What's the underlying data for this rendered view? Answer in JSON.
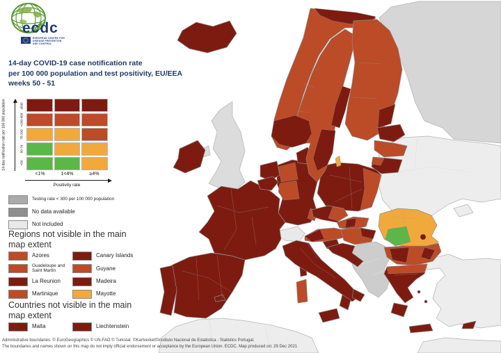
{
  "logo": {
    "wordmark": "ecdc",
    "subtitle_lines": [
      "EUROPEAN CENTRE FOR",
      "DISEASE PREVENTION",
      "AND CONTROL"
    ]
  },
  "title_lines": [
    "14-day COVID-19 case notification rate",
    "per 100 000 population and test positivity, EU/EEA",
    "weeks 50 - 51"
  ],
  "matrix": {
    "y_axis_label": "14-day notification rate per 100 000 population",
    "x_axis_label": "Positivity rate",
    "row_labels": [
      "≥500",
      ">200-499",
      "75-200",
      "50-74",
      "<50"
    ],
    "col_labels": [
      "<1%",
      "1<4%",
      "≥4%"
    ],
    "cells": [
      [
        "dark_red",
        "dark_red",
        "dark_red"
      ],
      [
        "red",
        "red",
        "red"
      ],
      [
        "orange",
        "orange",
        "red"
      ],
      [
        "green",
        "orange",
        "orange"
      ],
      [
        "green",
        "green",
        "orange"
      ]
    ]
  },
  "status_legend": {
    "items": [
      {
        "label": "Testing rate < 300 per 100 000 population",
        "color_key": "gray_testing"
      },
      {
        "label": "No data available",
        "color_key": "gray_nodata"
      },
      {
        "label": "Not included",
        "color_key": "gray_notincluded"
      }
    ]
  },
  "regions_section": {
    "heading": "Regions not visible in the main map extent",
    "items": [
      {
        "label": "Azores",
        "color_key": "red"
      },
      {
        "label": "Canary Islands",
        "color_key": "dark_red"
      },
      {
        "label": "Guadeloupe and Saint Martin",
        "color_key": "red"
      },
      {
        "label": "Guyane",
        "color_key": "red"
      },
      {
        "label": "La Reunion",
        "color_key": "dark_red"
      },
      {
        "label": "Madeira",
        "color_key": "dark_red"
      },
      {
        "label": "Martinique",
        "color_key": "red"
      },
      {
        "label": "Mayotte",
        "color_key": "orange"
      }
    ]
  },
  "countries_section": {
    "heading": "Countries not visible in the main map extent",
    "items": [
      {
        "label": "Malta",
        "color_key": "dark_red"
      },
      {
        "label": "Liechtenstein",
        "color_key": "dark_red"
      }
    ]
  },
  "footer": {
    "line1": "Administrative boundaries: © EuroGeographics © UN-FAO © Turkstat. ©Kartverket©Instituto Nacional de Estatistica - Statistics Portugal.",
    "line2": "The boundaries and names shown on this map do not imply official endorsement or acceptance by the European Union. ECDC. Map produced on: 29 Dec 2021"
  },
  "palette": {
    "dark_red": "#7E1B10",
    "red": "#BC4B28",
    "orange": "#F2A93B",
    "green": "#5BB747",
    "gray_testing": "#ABABAB",
    "gray_nodata": "#8F8F8F",
    "gray_notincluded": "#E9E9E9",
    "noneu_dark": "#CDCDCD",
    "noneu_mid": "#D6D6D6",
    "noneu_light": "#EDEDED",
    "uk_gray": "#DCDCDC",
    "logo_green": "#5B9B37",
    "navy": "#1F3864"
  }
}
